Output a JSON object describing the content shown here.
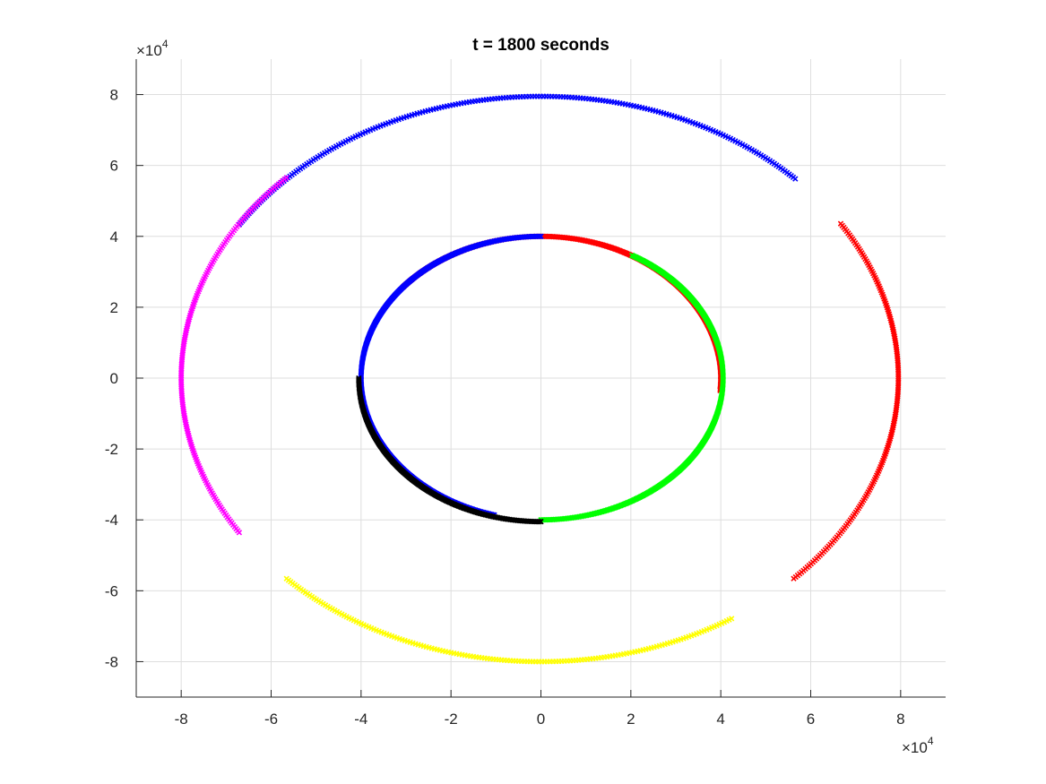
{
  "chart_data": {
    "type": "scatter",
    "title": "t = 1800 seconds",
    "xlabel": "",
    "ylabel": "",
    "xlim": [
      -90000,
      90000
    ],
    "ylim": [
      -90000,
      90000
    ],
    "x_ticks": [
      -80000,
      -60000,
      -40000,
      -20000,
      0,
      20000,
      40000,
      60000,
      80000
    ],
    "y_ticks": [
      -80000,
      -60000,
      -40000,
      -20000,
      0,
      20000,
      40000,
      60000,
      80000
    ],
    "x_tick_labels": [
      "-8",
      "-6",
      "-4",
      "-2",
      "0",
      "2",
      "4",
      "6",
      "8"
    ],
    "y_tick_labels": [
      "-8",
      "-6",
      "-4",
      "-2",
      "0",
      "2",
      "4",
      "6",
      "8"
    ],
    "x_multiplier": {
      "base": "×10",
      "exponent": "4"
    },
    "y_multiplier": {
      "base": "×10",
      "exponent": "4"
    },
    "grid": true,
    "marker": "x",
    "series": [
      {
        "color": "#0000ff",
        "radius": 80000,
        "x_radius": 80000,
        "y_radius": 79500,
        "start_deg": 45,
        "end_deg": 147
      },
      {
        "color": "#ff0000",
        "radius": 80000,
        "x_radius": 79500,
        "y_radius": 80000,
        "start_deg": -45,
        "end_deg": 33
      },
      {
        "color": "#ff00ff",
        "radius": 80000,
        "x_radius": 80000,
        "y_radius": 80000,
        "start_deg": 135,
        "end_deg": 213
      },
      {
        "color": "#ffff00",
        "radius": 80000,
        "x_radius": 80000,
        "y_radius": 80000,
        "start_deg": 225,
        "end_deg": 302
      },
      {
        "color": "#ff0000",
        "radius": 40000,
        "x_radius": 40000,
        "y_radius": 40000,
        "start_deg": -5,
        "end_deg": 140
      },
      {
        "color": "#00ff00",
        "radius": 40000,
        "x_radius": 40500,
        "y_radius": 40000,
        "start_deg": 270,
        "end_deg": 420
      },
      {
        "color": "#0000ff",
        "radius": 40000,
        "x_radius": 40000,
        "y_radius": 40000,
        "start_deg": 90,
        "end_deg": 255
      },
      {
        "color": "#000000",
        "radius": 40000,
        "x_radius": 40500,
        "y_radius": 40500,
        "start_deg": 180,
        "end_deg": 270
      }
    ]
  }
}
